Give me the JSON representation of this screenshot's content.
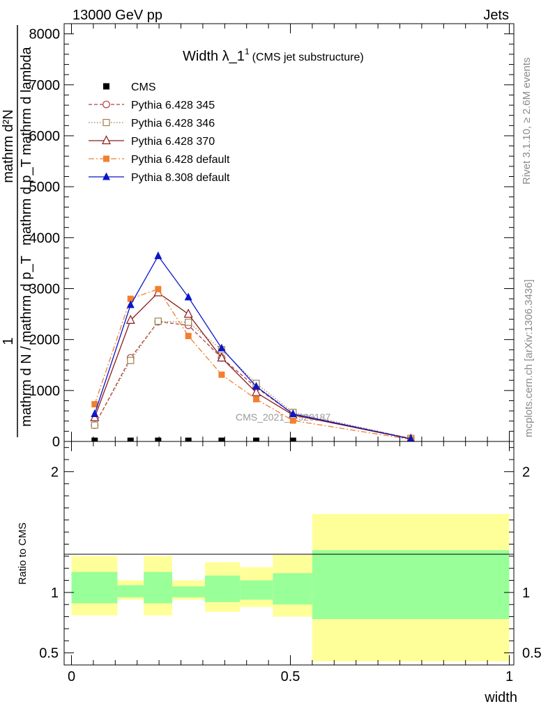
{
  "header": {
    "left": "13000 GeV pp",
    "right": "Jets"
  },
  "side_text": {
    "rivet": "Rivet 3.1.10, ≥ 2.6M events",
    "mcplots": "mcplots.cern.ch [arXiv:1306.3436]"
  },
  "chart_data": {
    "type": "line",
    "title_main": "Width λ_1",
    "title_sup": "1",
    "title_sub": "(CMS jet substructure)",
    "watermark": "CMS_2021_I1920187",
    "ylabel_num": "mathrm d²N",
    "ylabel_den_main": "mathrm d p_T mathrm d lambda",
    "ylabel_top_num": "1",
    "ylabel_top_den": "mathrm d N / mathrm d p_T",
    "xlabel": "width",
    "ratio_ylabel": "Ratio to CMS",
    "xlim": [
      0,
      1
    ],
    "ylim_main": [
      0,
      8200
    ],
    "ylim_ratio": [
      0.4,
      2.25
    ],
    "main_yticks": [
      {
        "v": 0,
        "label": "0"
      },
      {
        "v": 1000,
        "label": "1000"
      },
      {
        "v": 2000,
        "label": "2000"
      },
      {
        "v": 3000,
        "label": "3000"
      },
      {
        "v": 4000,
        "label": "4000"
      },
      {
        "v": 5000,
        "label": "5000"
      },
      {
        "v": 6000,
        "label": "6000"
      },
      {
        "v": 7000,
        "label": "7000"
      },
      {
        "v": 8000,
        "label": "8000"
      }
    ],
    "ratio_yticks": [
      {
        "v": 0.5,
        "label": "0.5"
      },
      {
        "v": 1,
        "label": "1"
      },
      {
        "v": 2,
        "label": "2"
      }
    ],
    "xticks": [
      {
        "v": 0,
        "label": "0"
      },
      {
        "v": 0.5,
        "label": "0.5"
      },
      {
        "v": 1,
        "label": "1"
      }
    ],
    "bins": [
      {
        "lo": 0.0,
        "hi": 0.105,
        "c": 0.053
      },
      {
        "lo": 0.105,
        "hi": 0.165,
        "c": 0.135
      },
      {
        "lo": 0.165,
        "hi": 0.23,
        "c": 0.198
      },
      {
        "lo": 0.23,
        "hi": 0.305,
        "c": 0.267
      },
      {
        "lo": 0.305,
        "hi": 0.385,
        "c": 0.343
      },
      {
        "lo": 0.385,
        "hi": 0.46,
        "c": 0.422
      },
      {
        "lo": 0.46,
        "hi": 0.55,
        "c": 0.506
      },
      {
        "lo": 0.55,
        "hi": 1.0,
        "c": 0.775
      }
    ],
    "ratio_bands": [
      {
        "y_lo": 0.81,
        "y_hi": 1.3,
        "g_lo": 0.91,
        "g_hi": 1.17
      },
      {
        "y_lo": 0.94,
        "y_hi": 1.1,
        "g_lo": 0.96,
        "g_hi": 1.06
      },
      {
        "y_lo": 0.81,
        "y_hi": 1.3,
        "g_lo": 0.91,
        "g_hi": 1.17
      },
      {
        "y_lo": 0.94,
        "y_hi": 1.1,
        "g_lo": 0.96,
        "g_hi": 1.05
      },
      {
        "y_lo": 0.84,
        "y_hi": 1.25,
        "g_lo": 0.92,
        "g_hi": 1.14
      },
      {
        "y_lo": 0.88,
        "y_hi": 1.21,
        "g_lo": 0.94,
        "g_hi": 1.1
      },
      {
        "y_lo": 0.8,
        "y_hi": 1.31,
        "g_lo": 0.9,
        "g_hi": 1.16
      },
      {
        "y_lo": 0.43,
        "y_hi": 1.65,
        "g_lo": 0.78,
        "g_hi": 1.35
      }
    ],
    "series": [
      {
        "name": "CMS",
        "color": "#000000",
        "marker": "square-filled",
        "dash": "none",
        "values": [
          0,
          0,
          0,
          0,
          0,
          0,
          0,
          0
        ]
      },
      {
        "name": "Pythia 6.428 345",
        "color": "#b04040",
        "marker": "circle-open",
        "dash": "5,3",
        "values": [
          320,
          1640,
          2350,
          2280,
          1640,
          1060,
          540,
          60
        ]
      },
      {
        "name": "Pythia 6.428 346",
        "color": "#a08050",
        "marker": "square-open",
        "dash": "1.5,2.5",
        "values": [
          320,
          1590,
          2360,
          2340,
          1800,
          1140,
          570,
          60
        ]
      },
      {
        "name": "Pythia 6.428 370",
        "color": "#8b1a1a",
        "marker": "triangle-open",
        "dash": "none",
        "values": [
          470,
          2380,
          2920,
          2500,
          1640,
          960,
          520,
          50
        ]
      },
      {
        "name": "Pythia 6.428 default",
        "color": "#f08030",
        "marker": "square-filled",
        "dash": "8,3,2,3",
        "values": [
          730,
          2800,
          2990,
          2070,
          1310,
          830,
          410,
          40
        ]
      },
      {
        "name": "Pythia 8.308 default",
        "color": "#0a16c8",
        "marker": "triangle-filled",
        "dash": "none",
        "values": [
          540,
          2680,
          3640,
          2830,
          1830,
          1080,
          540,
          50
        ]
      }
    ]
  }
}
